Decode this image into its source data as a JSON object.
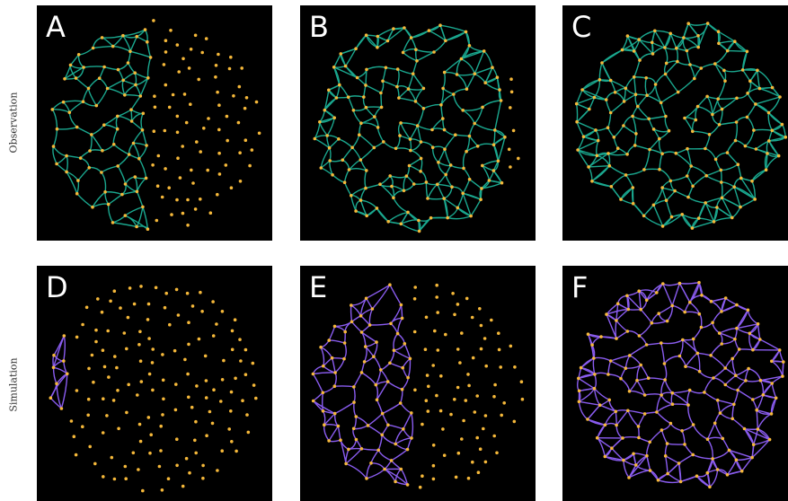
{
  "row_labels": {
    "top": "Observation",
    "bottom": "Simulation"
  },
  "colors": {
    "background": "#000000",
    "node": "#f5b83a",
    "observation_edge": "#1aa88f",
    "simulation_edge": "#8a5cf0"
  },
  "panels": [
    {
      "letter": "A",
      "type": "observation",
      "coverage": 0.45,
      "seed": 11
    },
    {
      "letter": "B",
      "type": "observation",
      "coverage": 0.85,
      "seed": 23
    },
    {
      "letter": "C",
      "type": "observation",
      "coverage": 1.0,
      "seed": 37
    },
    {
      "letter": "D",
      "type": "simulation",
      "coverage": 0.1,
      "seed": 41
    },
    {
      "letter": "E",
      "type": "simulation",
      "coverage": 0.45,
      "seed": 53
    },
    {
      "letter": "F",
      "type": "simulation",
      "coverage": 1.0,
      "seed": 67
    }
  ]
}
